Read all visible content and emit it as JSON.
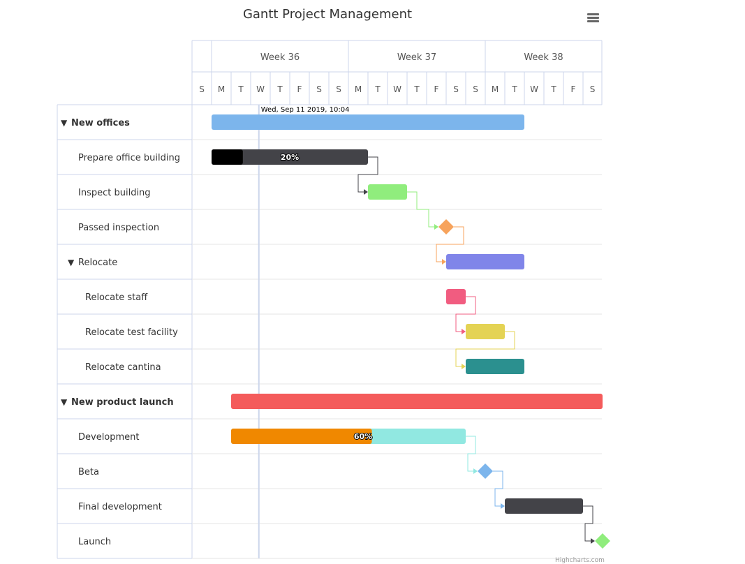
{
  "title": "Gantt Project Management",
  "menu_icon": "hamburger-menu-icon",
  "current_date_label": "Wed, Sep 11 2019, 10:04",
  "credits": "Highcharts.com",
  "colors": {
    "grid": "#e6e6e6",
    "axis_border": "#ccd6eb",
    "current_line": "#ccd6eb",
    "completed_shade": "#000000"
  },
  "chart_data": {
    "type": "gantt",
    "title": "Gantt Project Management",
    "x_axis": {
      "start": "2019-09-08",
      "end": "2019-09-29",
      "weeks": [
        "Week 36",
        "Week 37",
        "Week 38"
      ],
      "days": [
        "S",
        "M",
        "T",
        "W",
        "T",
        "F",
        "S",
        "S",
        "M",
        "T",
        "W",
        "T",
        "F",
        "S",
        "S",
        "M",
        "T",
        "W",
        "T",
        "F",
        "S"
      ]
    },
    "current_date": "2019-09-11T10:04",
    "tasks": [
      {
        "id": "new_offices",
        "name": "New offices",
        "level": 0,
        "group": true,
        "start": "2019-09-09",
        "end": "2019-09-25",
        "color": "#7cb5ec"
      },
      {
        "id": "prepare_building",
        "name": "Prepare office building",
        "level": 1,
        "start": "2019-09-09",
        "end": "2019-09-17",
        "color": "#434348",
        "completed": 0.2,
        "completed_label": "20%"
      },
      {
        "id": "inspect_building",
        "name": "Inspect building",
        "level": 1,
        "start": "2019-09-17",
        "end": "2019-09-19",
        "color": "#90ed7d",
        "dependency": "prepare_building"
      },
      {
        "id": "passed_inspection",
        "name": "Passed inspection",
        "level": 1,
        "milestone": true,
        "date": "2019-09-21",
        "color": "#f7a35c",
        "dependency": "inspect_building"
      },
      {
        "id": "relocate",
        "name": "Relocate",
        "level": 1,
        "group": true,
        "start": "2019-09-21",
        "end": "2019-09-25",
        "color": "#8085e9",
        "dependency": "passed_inspection"
      },
      {
        "id": "relocate_staff",
        "name": "Relocate staff",
        "level": 2,
        "start": "2019-09-21",
        "end": "2019-09-22",
        "color": "#f15c80"
      },
      {
        "id": "relocate_test",
        "name": "Relocate test facility",
        "level": 2,
        "start": "2019-09-22",
        "end": "2019-09-24",
        "color": "#e4d354",
        "dependency": "relocate_staff"
      },
      {
        "id": "relocate_cantina",
        "name": "Relocate cantina",
        "level": 2,
        "start": "2019-09-22",
        "end": "2019-09-25",
        "color": "#2b908f",
        "dependency": "relocate_test"
      },
      {
        "id": "new_product",
        "name": "New product launch",
        "level": 0,
        "group": true,
        "start": "2019-09-10",
        "end": "2019-09-29",
        "color": "#f45b5b"
      },
      {
        "id": "development",
        "name": "Development",
        "level": 1,
        "start": "2019-09-10",
        "end": "2019-09-22",
        "color": "#91e8e1",
        "completed": 0.6,
        "completed_label": "60%",
        "completed_color": "#f08800"
      },
      {
        "id": "beta",
        "name": "Beta",
        "level": 1,
        "milestone": true,
        "date": "2019-09-23",
        "color": "#7cb5ec",
        "dependency": "development"
      },
      {
        "id": "final_dev",
        "name": "Final development",
        "level": 1,
        "start": "2019-09-24",
        "end": "2019-09-28",
        "color": "#434348",
        "dependency": "beta"
      },
      {
        "id": "launch",
        "name": "Launch",
        "level": 1,
        "milestone": true,
        "date": "2019-09-29",
        "color": "#90ed7d",
        "dependency": "final_dev"
      }
    ]
  }
}
